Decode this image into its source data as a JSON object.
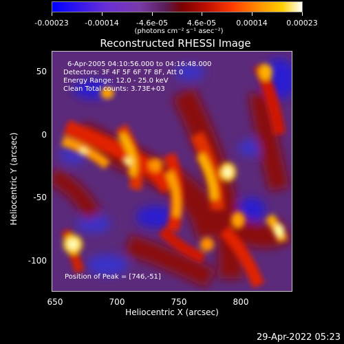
{
  "colorbar": {
    "tick_labels": [
      "-0.00023",
      "-0.00014",
      "-4.6e-05",
      "4.6e-05",
      "0.00014",
      "0.00023"
    ],
    "units": "(photons cm⁻² s⁻¹ asec⁻²)"
  },
  "title": "Reconstructed RHESSI Image",
  "annotations": {
    "time_range": "6-Apr-2005 04:10:56.000 to 04:16:48.000",
    "detectors": "Detectors: 3F 4F 5F 6F 7F 8F, Att 0",
    "energy_range": "Energy Range: 12.0 - 25.0 keV",
    "clean_counts": "Clean    Total counts: 3.73E+03",
    "peak_position": "Position of Peak = [746,-51]"
  },
  "axes": {
    "xlabel": "Heliocentric X (arcsec)",
    "ylabel": "Heliocentric Y (arcsec)",
    "xticks": [
      "650",
      "700",
      "750",
      "800"
    ],
    "yticks": [
      "50",
      "0",
      "-50",
      "-100"
    ]
  },
  "timestamp": "29-Apr-2022 05:23",
  "colors": {
    "background": "#000000",
    "foreground": "#ffffff"
  }
}
